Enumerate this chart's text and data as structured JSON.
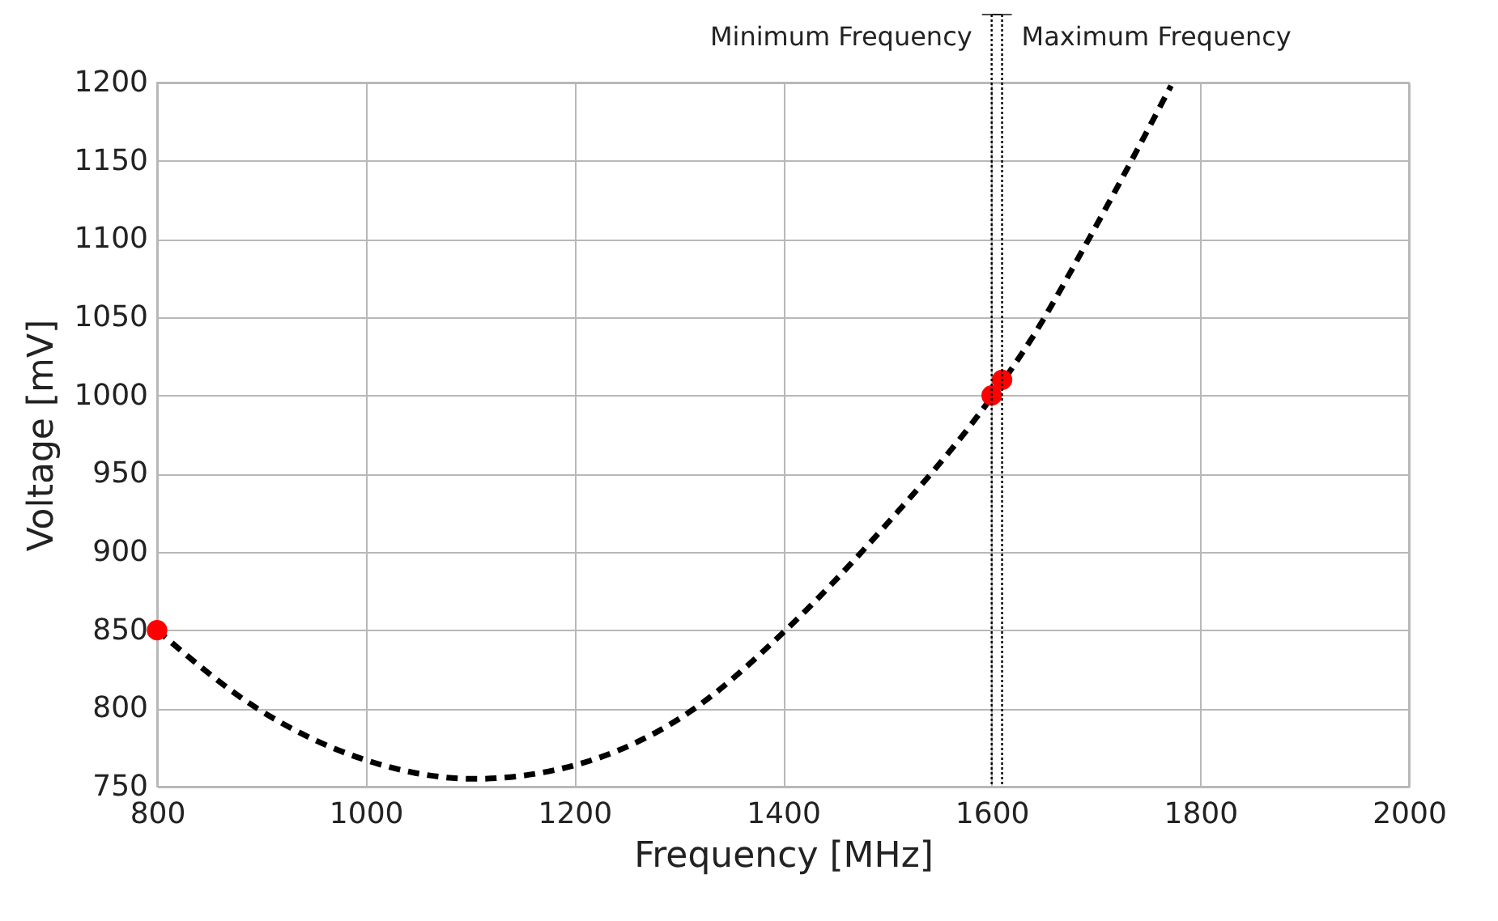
{
  "chart_data": {
    "type": "line",
    "xlabel": "Frequency [MHz]",
    "ylabel": "Voltage [mV]",
    "xlim": [
      800,
      2000
    ],
    "xticks": [
      800,
      1000,
      1200,
      1400,
      1600,
      1800,
      2000
    ],
    "ylim": [
      750,
      1200
    ],
    "yticks": [
      750,
      800,
      850,
      900,
      950,
      1000,
      1050,
      1100,
      1150,
      1200
    ],
    "grid": true,
    "series": [
      {
        "color": "#000000",
        "line_style": "dashed",
        "marker": "none",
        "x": [
          800,
          896,
          1000,
          1104,
          1202,
          1311,
          1401,
          1497,
          1600,
          1637,
          1694,
          1772
        ],
        "values": [
          850,
          800,
          767,
          755,
          764,
          798,
          849,
          916,
          999,
          1035,
          1101,
          1198
        ]
      },
      {
        "type": "scatter",
        "color": "#ff0000",
        "marker": "circle",
        "x": [
          800,
          1600,
          1610
        ],
        "values": [
          850,
          1000,
          1010
        ]
      }
    ],
    "ref_lines": [
      {
        "axis": "x",
        "value": 1600,
        "label": "Minimum Frequency",
        "line_style": "dotted",
        "color": "#000000"
      },
      {
        "axis": "x",
        "value": 1610,
        "label": "Maximum Frequency",
        "line_style": "dotted",
        "color": "#000000"
      }
    ]
  }
}
